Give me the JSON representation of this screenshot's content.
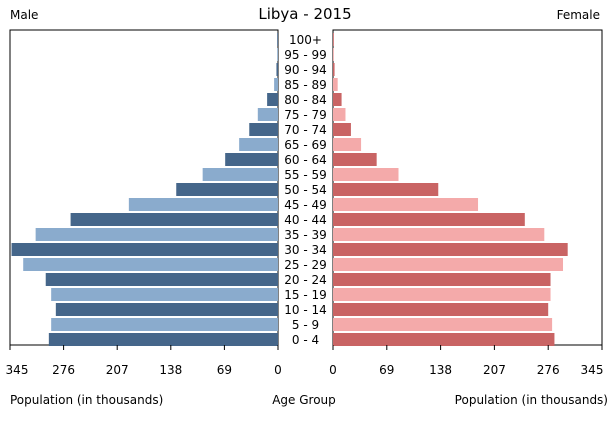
{
  "chart_data": {
    "type": "bar",
    "title": "Libya - 2015",
    "left_panel_label": "Male",
    "right_panel_label": "Female",
    "left_axis_label": "Population (in thousands)",
    "right_axis_label": "Population (in thousands)",
    "center_label": "Age Group",
    "categories": [
      "100+",
      "95 - 99",
      "90 - 94",
      "85 - 89",
      "80 - 84",
      "75 - 79",
      "70 - 74",
      "65 - 69",
      "60 - 64",
      "55 - 59",
      "50 - 54",
      "45 - 49",
      "40 - 44",
      "35 - 39",
      "30 - 34",
      "25 - 29",
      "20 - 24",
      "15 - 19",
      "10 - 14",
      "5 - 9",
      "0 - 4"
    ],
    "xlim": [
      0,
      345
    ],
    "x_ticks": [
      "345",
      "276",
      "207",
      "138",
      "69",
      "0"
    ],
    "x_tick_values": [
      345,
      276,
      207,
      138,
      69,
      0
    ],
    "series": [
      {
        "name": "Male",
        "values": [
          0.3,
          0.8,
          2,
          5,
          14,
          26,
          37,
          50,
          68,
          97,
          131,
          192,
          267,
          312,
          343,
          328,
          299,
          292,
          286,
          292,
          295
        ]
      },
      {
        "name": "Female",
        "values": [
          0.3,
          0.8,
          2,
          6,
          11,
          16,
          23,
          36,
          56,
          84,
          135,
          186,
          246,
          271,
          301,
          295,
          279,
          279,
          276,
          281,
          284
        ]
      }
    ],
    "colors": {
      "male_dark": "#45668a",
      "male_light": "#8aabcd",
      "female_dark": "#c96464",
      "female_light": "#f4aaaa"
    }
  }
}
